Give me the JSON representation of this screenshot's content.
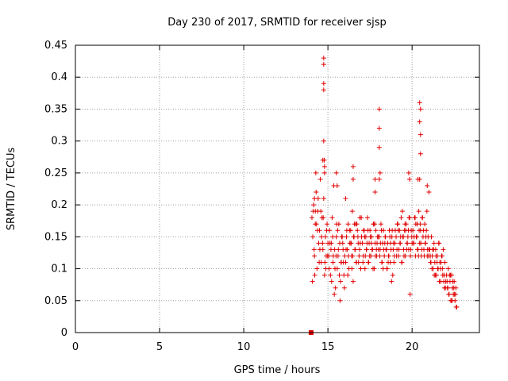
{
  "chart_data": {
    "type": "scatter",
    "title": "Day 230 of 2017, SRMTID for receiver sjsp",
    "xlabel": "GPS time / hours",
    "ylabel": "SRMTID / TECUs",
    "xlim": [
      0,
      24
    ],
    "ylim": [
      0,
      0.45
    ],
    "xticks": [
      "0",
      "5",
      "10",
      "15",
      "20"
    ],
    "xtick_values": [
      0,
      5,
      10,
      15,
      20
    ],
    "yticks": [
      "0",
      "0.05",
      "0.1",
      "0.15",
      "0.2",
      "0.25",
      "0.3",
      "0.35",
      "0.4",
      "0.45"
    ],
    "ytick_values": [
      0,
      0.05,
      0.1,
      0.15,
      0.2,
      0.25,
      0.3,
      0.35,
      0.4,
      0.45
    ],
    "grid": true,
    "marker": "plus",
    "color": "#e00000",
    "square_markers": [
      {
        "x": 14.0,
        "y": 0.0
      }
    ],
    "series": [
      {
        "x": [
          14.05,
          14.1,
          14.15,
          14.2,
          14.25,
          14.3,
          14.35,
          14.4,
          14.45,
          14.5,
          14.55,
          14.6,
          14.65,
          14.7,
          14.75,
          14.8,
          14.85,
          14.9,
          14.95,
          15.0,
          14.08,
          14.18,
          14.28,
          14.38,
          14.48,
          14.58,
          14.68,
          14.78,
          14.88,
          14.98,
          14.12,
          14.22,
          14.32,
          14.42,
          14.52,
          14.62,
          14.72,
          14.82,
          14.92,
          15.05,
          15.1,
          15.15,
          15.2,
          15.25,
          15.3,
          15.35,
          15.4,
          15.45,
          15.5,
          15.55,
          15.6,
          15.65,
          15.7,
          15.75,
          15.8,
          15.85,
          15.9,
          15.95,
          16.0,
          15.08,
          15.18,
          15.28,
          15.38,
          15.48,
          15.58,
          15.68,
          15.78,
          15.88,
          15.98,
          15.12,
          15.22,
          15.32,
          15.42,
          15.52,
          15.62,
          15.72,
          15.82,
          15.92,
          16.05,
          16.1,
          16.15,
          16.2,
          16.25,
          16.3,
          16.35,
          16.4,
          16.45,
          16.5,
          16.55,
          16.6,
          16.65,
          16.7,
          16.75,
          16.8,
          16.85,
          16.9,
          16.95,
          17.0,
          16.08,
          16.18,
          16.28,
          16.38,
          16.48,
          16.58,
          16.68,
          16.78,
          16.88,
          16.98,
          16.12,
          16.22,
          16.32,
          16.42,
          16.52,
          16.62,
          16.72,
          16.82,
          16.92,
          17.05,
          17.1,
          17.15,
          17.2,
          17.25,
          17.3,
          17.35,
          17.4,
          17.45,
          17.5,
          17.55,
          17.6,
          17.65,
          17.7,
          17.75,
          17.8,
          17.85,
          17.9,
          17.95,
          18.0,
          17.08,
          17.18,
          17.28,
          17.38,
          17.48,
          17.58,
          17.68,
          17.78,
          17.88,
          17.98,
          17.12,
          17.22,
          17.32,
          17.42,
          17.52,
          17.62,
          17.72,
          17.82,
          17.92,
          18.05,
          18.1,
          18.15,
          18.2,
          18.25,
          18.3,
          18.35,
          18.4,
          18.45,
          18.5,
          18.55,
          18.6,
          18.65,
          18.7,
          18.75,
          18.8,
          18.85,
          18.9,
          18.95,
          19.0,
          18.08,
          18.18,
          18.28,
          18.38,
          18.48,
          18.58,
          18.68,
          18.78,
          18.88,
          18.98,
          18.12,
          18.22,
          18.32,
          18.42,
          18.52,
          18.62,
          18.72,
          18.82,
          18.92,
          19.05,
          19.1,
          19.15,
          19.2,
          19.25,
          19.3,
          19.35,
          19.4,
          19.45,
          19.5,
          19.55,
          19.6,
          19.65,
          19.7,
          19.75,
          19.8,
          19.85,
          19.9,
          19.95,
          20.0,
          19.08,
          19.18,
          19.28,
          19.38,
          19.48,
          19.58,
          19.68,
          19.78,
          19.88,
          19.98,
          19.12,
          19.22,
          19.32,
          19.42,
          19.52,
          19.62,
          19.72,
          19.82,
          19.92,
          20.05,
          20.1,
          20.15,
          20.2,
          20.25,
          20.3,
          20.35,
          20.4,
          20.45,
          20.5,
          20.55,
          20.6,
          20.65,
          20.7,
          20.75,
          20.8,
          20.85,
          20.9,
          20.95,
          21.0,
          20.08,
          20.18,
          20.28,
          20.38,
          20.48,
          20.58,
          20.68,
          20.78,
          20.88,
          20.98,
          20.12,
          20.22,
          20.32,
          20.42,
          20.52,
          20.62,
          20.72,
          20.82,
          20.92,
          21.05,
          21.1,
          21.15,
          21.2,
          21.25,
          21.3,
          21.35,
          21.4,
          21.45,
          21.5,
          21.55,
          21.6,
          21.65,
          21.7,
          21.75,
          21.8,
          21.85,
          21.9,
          21.95,
          22.0,
          21.08,
          21.18,
          21.28,
          21.38,
          21.48,
          21.58,
          21.68,
          21.78,
          21.88,
          21.98,
          21.12,
          21.22,
          21.32,
          21.42,
          21.52,
          21.62,
          21.72,
          21.82,
          21.92,
          22.05,
          22.1,
          22.15,
          22.2,
          22.25,
          22.3,
          22.35,
          22.4,
          22.45,
          22.5,
          22.55,
          22.6,
          22.65,
          22.08,
          22.18,
          22.28,
          22.38,
          22.48,
          22.58,
          22.12,
          22.22,
          22.32,
          22.42,
          22.52,
          22.62,
          14.75,
          14.75,
          14.75,
          14.75,
          14.75,
          14.8,
          14.8,
          14.7,
          18.05,
          18.05,
          18.05,
          18.05,
          18.1,
          20.45,
          20.45,
          20.5,
          20.5,
          20.5,
          20.45,
          16.5,
          16.5,
          17.8,
          17.8,
          19.8,
          19.85,
          20.35,
          20.9,
          21.0,
          14.2,
          14.25,
          15.5,
          15.55,
          16.05
        ],
        "y": [
          0.18,
          0.15,
          0.2,
          0.12,
          0.17,
          0.22,
          0.1,
          0.19,
          0.14,
          0.16,
          0.24,
          0.11,
          0.18,
          0.13,
          0.21,
          0.09,
          0.15,
          0.12,
          0.17,
          0.14,
          0.08,
          0.13,
          0.25,
          0.16,
          0.11,
          0.19,
          0.14,
          0.27,
          0.1,
          0.12,
          0.19,
          0.09,
          0.17,
          0.21,
          0.13,
          0.15,
          0.18,
          0.11,
          0.16,
          0.12,
          0.16,
          0.09,
          0.14,
          0.18,
          0.11,
          0.23,
          0.13,
          0.07,
          0.15,
          0.1,
          0.12,
          0.17,
          0.14,
          0.08,
          0.11,
          0.15,
          0.13,
          0.09,
          0.12,
          0.1,
          0.13,
          0.15,
          0.06,
          0.12,
          0.16,
          0.09,
          0.11,
          0.14,
          0.07,
          0.14,
          0.08,
          0.12,
          0.1,
          0.17,
          0.13,
          0.05,
          0.15,
          0.11,
          0.11,
          0.15,
          0.13,
          0.17,
          0.1,
          0.14,
          0.16,
          0.12,
          0.19,
          0.08,
          0.15,
          0.13,
          0.17,
          0.11,
          0.16,
          0.14,
          0.12,
          0.18,
          0.1,
          0.15,
          0.13,
          0.09,
          0.16,
          0.14,
          0.12,
          0.17,
          0.11,
          0.15,
          0.13,
          0.18,
          0.16,
          0.12,
          0.14,
          0.1,
          0.15,
          0.13,
          0.17,
          0.11,
          0.14,
          0.14,
          0.12,
          0.16,
          0.1,
          0.15,
          0.13,
          0.18,
          0.11,
          0.14,
          0.16,
          0.12,
          0.15,
          0.13,
          0.17,
          0.1,
          0.14,
          0.16,
          0.12,
          0.15,
          0.13,
          0.11,
          0.15,
          0.13,
          0.16,
          0.12,
          0.14,
          0.1,
          0.17,
          0.13,
          0.15,
          0.16,
          0.12,
          0.14,
          0.11,
          0.15,
          0.13,
          0.17,
          0.12,
          0.14,
          0.15,
          0.13,
          0.17,
          0.11,
          0.14,
          0.16,
          0.12,
          0.15,
          0.13,
          0.1,
          0.14,
          0.12,
          0.16,
          0.11,
          0.13,
          0.15,
          0.09,
          0.14,
          0.12,
          0.16,
          0.12,
          0.16,
          0.1,
          0.14,
          0.13,
          0.11,
          0.15,
          0.08,
          0.13,
          0.14,
          0.14,
          0.11,
          0.13,
          0.15,
          0.1,
          0.12,
          0.14,
          0.16,
          0.11,
          0.15,
          0.13,
          0.17,
          0.12,
          0.16,
          0.14,
          0.18,
          0.11,
          0.15,
          0.13,
          0.16,
          0.12,
          0.17,
          0.14,
          0.15,
          0.13,
          0.18,
          0.12,
          0.16,
          0.14,
          0.12,
          0.16,
          0.14,
          0.11,
          0.15,
          0.17,
          0.13,
          0.16,
          0.06,
          0.15,
          0.17,
          0.13,
          0.15,
          0.19,
          0.12,
          0.16,
          0.14,
          0.18,
          0.13,
          0.16,
          0.14,
          0.18,
          0.12,
          0.15,
          0.17,
          0.13,
          0.19,
          0.14,
          0.16,
          0.12,
          0.18,
          0.15,
          0.13,
          0.17,
          0.14,
          0.16,
          0.12,
          0.15,
          0.13,
          0.14,
          0.18,
          0.15,
          0.12,
          0.17,
          0.13,
          0.16,
          0.14,
          0.19,
          0.12,
          0.15,
          0.17,
          0.13,
          0.16,
          0.14,
          0.18,
          0.12,
          0.15,
          0.13,
          0.13,
          0.11,
          0.15,
          0.12,
          0.1,
          0.14,
          0.11,
          0.13,
          0.09,
          0.12,
          0.1,
          0.14,
          0.11,
          0.08,
          0.12,
          0.1,
          0.13,
          0.09,
          0.11,
          0.08,
          0.12,
          0.1,
          0.13,
          0.09,
          0.11,
          0.14,
          0.1,
          0.12,
          0.08,
          0.07,
          0.11,
          0.13,
          0.09,
          0.12,
          0.1,
          0.08,
          0.11,
          0.09,
          0.07,
          0.09,
          0.07,
          0.1,
          0.06,
          0.08,
          0.05,
          0.09,
          0.07,
          0.06,
          0.08,
          0.05,
          0.07,
          0.04,
          0.08,
          0.06,
          0.09,
          0.05,
          0.07,
          0.06,
          0.07,
          0.09,
          0.05,
          0.08,
          0.06,
          0.04,
          0.43,
          0.42,
          0.38,
          0.39,
          0.3,
          0.26,
          0.25,
          0.27,
          0.35,
          0.32,
          0.29,
          0.24,
          0.25,
          0.36,
          0.33,
          0.35,
          0.31,
          0.28,
          0.24,
          0.26,
          0.24,
          0.22,
          0.24,
          0.25,
          0.24,
          0.24,
          0.23,
          0.22,
          0.21,
          0.19,
          0.25,
          0.23,
          0.21
        ]
      }
    ]
  }
}
